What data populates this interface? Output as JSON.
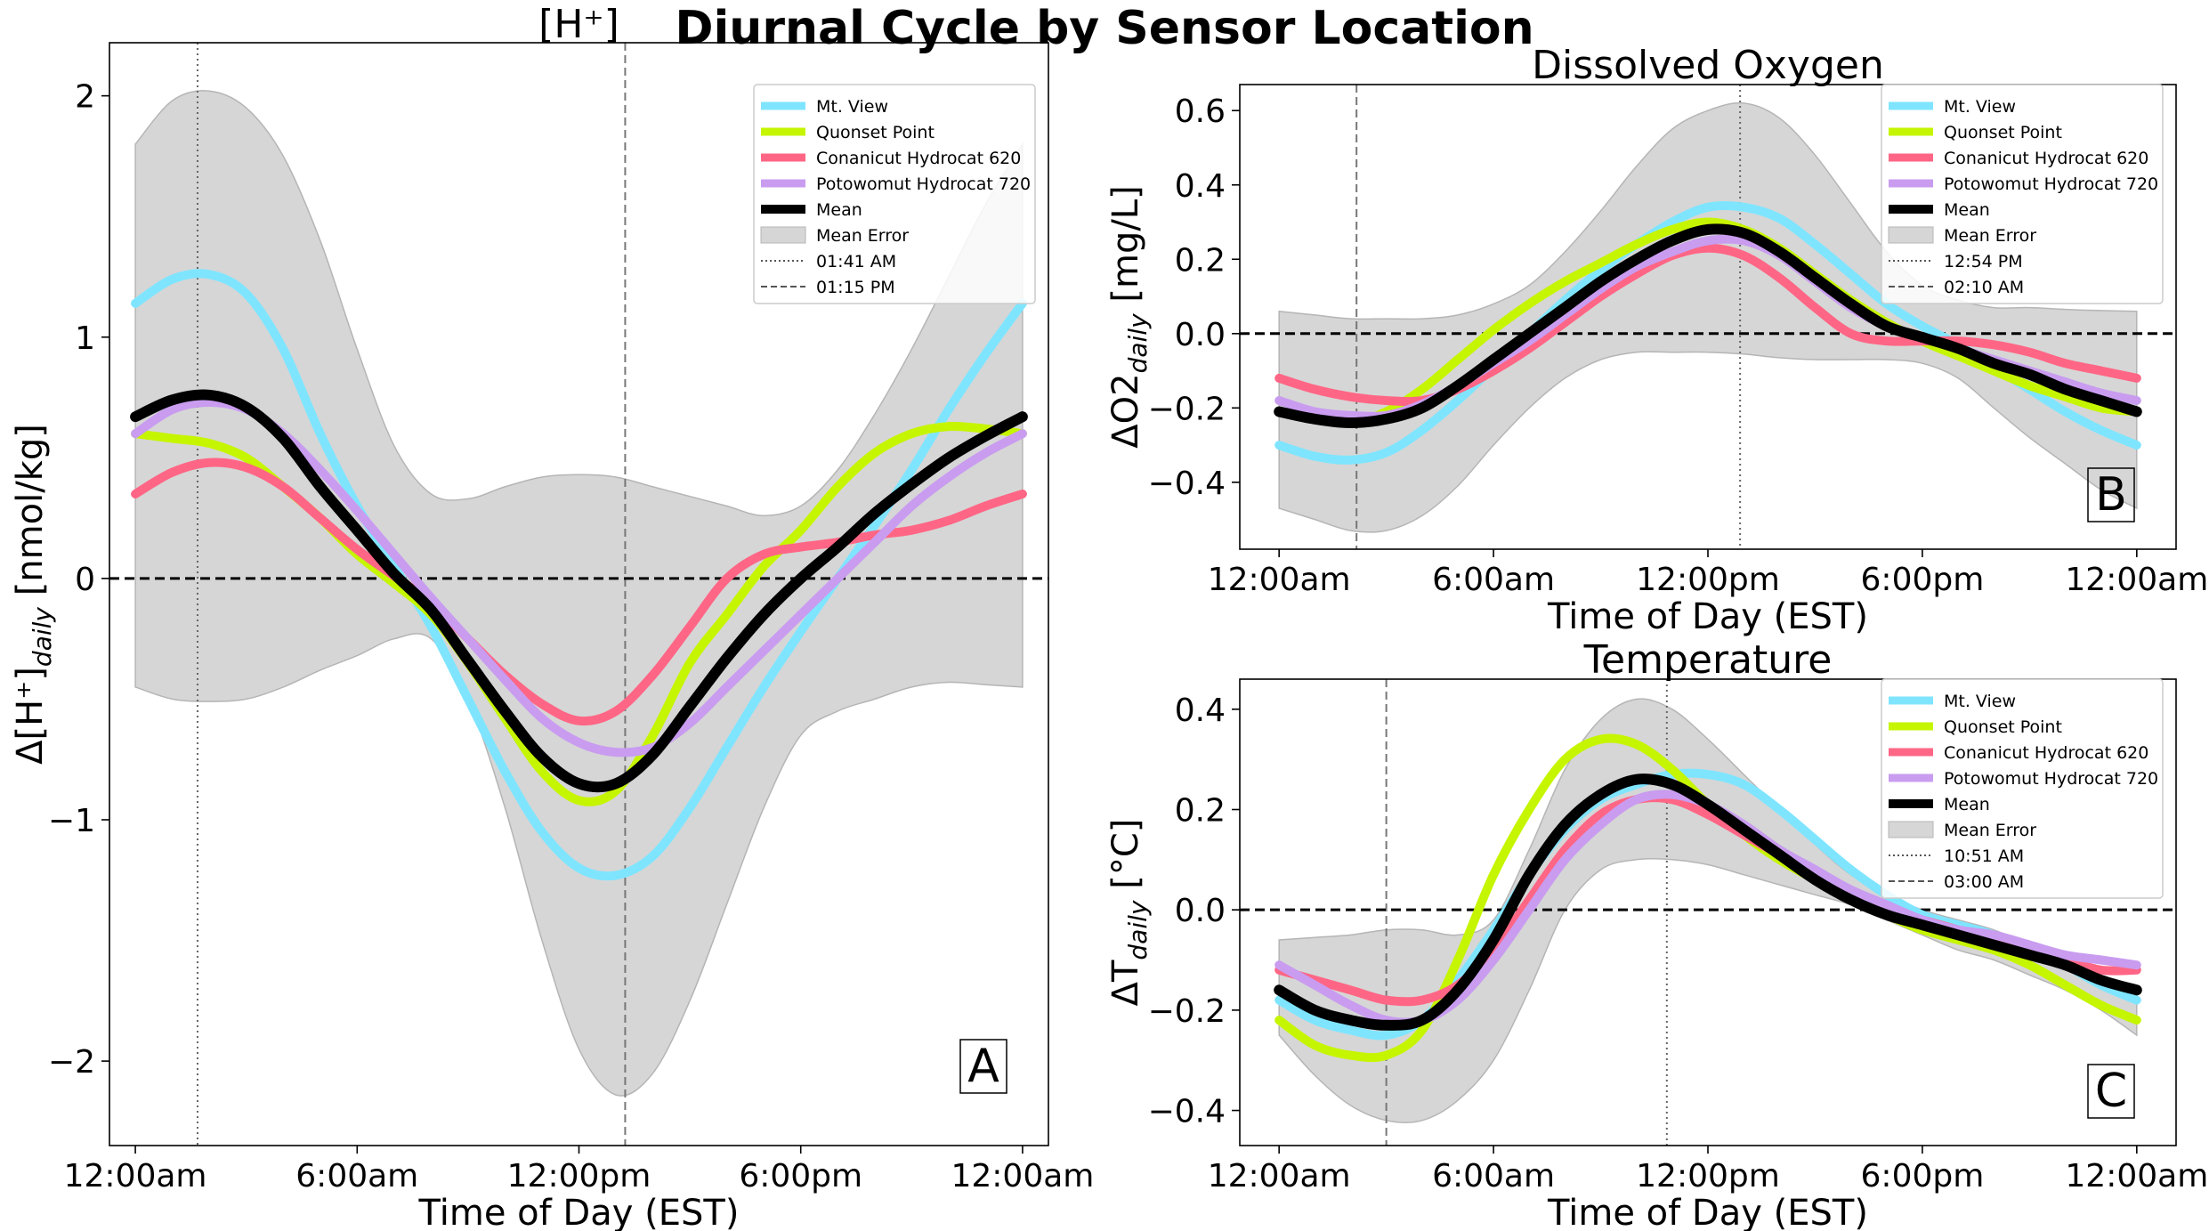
{
  "figure": {
    "title": "Diurnal Cycle by Sensor Location"
  },
  "legend_labels": {
    "series": [
      "Mt. View",
      "Quonset Point",
      "Conanicut Hydrocat 620",
      "Potowomut Hydrocat 720",
      "Mean"
    ],
    "error_band": "Mean Error"
  },
  "colors": {
    "Mt. View": "#7fe5ff",
    "Quonset Point": "#c6f500",
    "Conanicut Hydrocat 620": "#ff6685",
    "Potowomut Hydrocat 720": "#c99cf0",
    "Mean": "#000000",
    "band": "#d6d6d6"
  },
  "chart_data": [
    {
      "type": "line",
      "title": "[H⁺]",
      "xlabel": "Time of Day (EST)",
      "ylabel": "Δ[H⁺]daily [nmol/kg]",
      "ylabel_main": "Δ[H⁺]",
      "ylabel_sub": "daily",
      "ylabel_unit": " [nmol/kg]",
      "xlim": [
        -0.7,
        24.7
      ],
      "ylim": [
        -2.35,
        2.22
      ],
      "yticks": [
        -2,
        -1,
        0,
        1,
        2
      ],
      "ytick_labels": [
        "−2",
        "−1",
        "0",
        "1",
        "2"
      ],
      "xticks": [
        0,
        6,
        12,
        18,
        24
      ],
      "xtick_labels": [
        "12:00am",
        "6:00am",
        "12:00pm",
        "6:00pm",
        "12:00am"
      ],
      "panel_letter": "A",
      "zero_line": true,
      "vlines": [
        {
          "x": 1.683,
          "style": "dotted",
          "label": "01:41 AM"
        },
        {
          "x": 13.25,
          "style": "dashed",
          "label": "01:15 PM"
        }
      ],
      "legend_position": "top-right",
      "band": {
        "x": [
          0,
          1,
          2,
          3,
          4,
          5,
          6,
          7,
          8,
          9,
          10,
          11,
          12,
          13,
          14,
          15,
          16,
          17,
          18,
          19,
          20,
          21,
          22,
          23,
          24
        ],
        "upper": [
          1.8,
          1.98,
          2.02,
          1.95,
          1.75,
          1.4,
          0.95,
          0.55,
          0.35,
          0.33,
          0.38,
          0.42,
          0.43,
          0.42,
          0.38,
          0.34,
          0.3,
          0.26,
          0.3,
          0.45,
          0.68,
          0.95,
          1.25,
          1.55,
          1.8
        ],
        "lower": [
          -0.45,
          -0.5,
          -0.51,
          -0.5,
          -0.45,
          -0.38,
          -0.32,
          -0.25,
          -0.25,
          -0.5,
          -0.95,
          -1.5,
          -1.95,
          -2.14,
          -2.05,
          -1.75,
          -1.35,
          -0.95,
          -0.65,
          -0.55,
          -0.5,
          -0.45,
          -0.43,
          -0.44,
          -0.45
        ]
      },
      "x": [
        0,
        1,
        2,
        3,
        4,
        5,
        6,
        7,
        8,
        9,
        10,
        11,
        12,
        13,
        14,
        15,
        16,
        17,
        18,
        19,
        20,
        21,
        22,
        23,
        24
      ],
      "series": [
        {
          "name": "Mt. View",
          "values": [
            1.14,
            1.24,
            1.26,
            1.18,
            0.95,
            0.6,
            0.3,
            0.05,
            -0.2,
            -0.5,
            -0.8,
            -1.05,
            -1.2,
            -1.23,
            -1.15,
            -0.95,
            -0.7,
            -0.45,
            -0.22,
            0.0,
            0.22,
            0.45,
            0.7,
            0.93,
            1.14
          ]
        },
        {
          "name": "Quonset Point",
          "values": [
            0.6,
            0.58,
            0.56,
            0.5,
            0.38,
            0.25,
            0.1,
            -0.02,
            -0.15,
            -0.35,
            -0.58,
            -0.8,
            -0.92,
            -0.88,
            -0.65,
            -0.35,
            -0.15,
            0.05,
            0.2,
            0.38,
            0.52,
            0.6,
            0.63,
            0.62,
            0.6
          ]
        },
        {
          "name": "Conanicut Hydrocat 620",
          "values": [
            0.35,
            0.44,
            0.48,
            0.46,
            0.38,
            0.25,
            0.12,
            0.01,
            -0.1,
            -0.25,
            -0.4,
            -0.52,
            -0.59,
            -0.55,
            -0.4,
            -0.2,
            0.0,
            0.1,
            0.13,
            0.15,
            0.18,
            0.2,
            0.24,
            0.3,
            0.35
          ]
        },
        {
          "name": "Potowomut Hydrocat 720",
          "values": [
            0.6,
            0.7,
            0.73,
            0.7,
            0.6,
            0.45,
            0.28,
            0.1,
            -0.08,
            -0.25,
            -0.42,
            -0.58,
            -0.68,
            -0.72,
            -0.7,
            -0.6,
            -0.45,
            -0.3,
            -0.15,
            0.0,
            0.15,
            0.3,
            0.42,
            0.52,
            0.6
          ]
        },
        {
          "name": "Mean",
          "values": [
            0.67,
            0.74,
            0.76,
            0.71,
            0.58,
            0.38,
            0.2,
            0.02,
            -0.13,
            -0.34,
            -0.55,
            -0.74,
            -0.85,
            -0.85,
            -0.73,
            -0.53,
            -0.33,
            -0.15,
            0.0,
            0.13,
            0.27,
            0.39,
            0.5,
            0.59,
            0.67
          ]
        }
      ]
    },
    {
      "type": "line",
      "title": "Dissolved Oxygen",
      "xlabel": "Time of Day (EST)",
      "ylabel": "ΔO2daily [mg/L]",
      "ylabel_main": "ΔO2",
      "ylabel_sub": "daily",
      "ylabel_unit": " [mg/L]",
      "xlim": [
        -1.1,
        25.1
      ],
      "ylim": [
        -0.58,
        0.67
      ],
      "yticks": [
        -0.4,
        -0.2,
        0.0,
        0.2,
        0.4,
        0.6
      ],
      "ytick_labels": [
        "−0.4",
        "−0.2",
        "0.0",
        "0.2",
        "0.4",
        "0.6"
      ],
      "xticks": [
        0,
        6,
        12,
        18,
        24
      ],
      "xtick_labels": [
        "12:00am",
        "6:00am",
        "12:00pm",
        "6:00pm",
        "12:00am"
      ],
      "panel_letter": "B",
      "zero_line": true,
      "vlines": [
        {
          "x": 12.9,
          "style": "dotted",
          "label": "12:54 PM"
        },
        {
          "x": 2.167,
          "style": "dashed",
          "label": "02:10 AM"
        }
      ],
      "legend_position": "top-right",
      "band": {
        "x": [
          0,
          1,
          2,
          3,
          4,
          5,
          6,
          7,
          8,
          9,
          10,
          11,
          12,
          13,
          14,
          15,
          16,
          17,
          18,
          19,
          20,
          21,
          22,
          23,
          24
        ],
        "upper": [
          0.06,
          0.05,
          0.04,
          0.04,
          0.04,
          0.05,
          0.08,
          0.13,
          0.22,
          0.33,
          0.45,
          0.55,
          0.6,
          0.62,
          0.58,
          0.48,
          0.35,
          0.22,
          0.13,
          0.09,
          0.07,
          0.07,
          0.065,
          0.062,
          0.06
        ],
        "lower": [
          -0.47,
          -0.5,
          -0.53,
          -0.53,
          -0.49,
          -0.41,
          -0.3,
          -0.2,
          -0.12,
          -0.07,
          -0.05,
          -0.05,
          -0.05,
          -0.055,
          -0.065,
          -0.07,
          -0.07,
          -0.07,
          -0.08,
          -0.12,
          -0.2,
          -0.28,
          -0.35,
          -0.42,
          -0.47
        ]
      },
      "x": [
        0,
        1,
        2,
        3,
        4,
        5,
        6,
        7,
        8,
        9,
        10,
        11,
        12,
        13,
        14,
        15,
        16,
        17,
        18,
        19,
        20,
        21,
        22,
        23,
        24
      ],
      "series": [
        {
          "name": "Mt. View",
          "values": [
            -0.3,
            -0.33,
            -0.34,
            -0.32,
            -0.26,
            -0.18,
            -0.09,
            0.0,
            0.09,
            0.17,
            0.24,
            0.3,
            0.34,
            0.34,
            0.31,
            0.24,
            0.16,
            0.08,
            0.02,
            -0.03,
            -0.09,
            -0.15,
            -0.21,
            -0.26,
            -0.3
          ]
        },
        {
          "name": "Quonset Point",
          "values": [
            -0.21,
            -0.23,
            -0.24,
            -0.21,
            -0.15,
            -0.07,
            0.01,
            0.08,
            0.14,
            0.19,
            0.24,
            0.28,
            0.3,
            0.28,
            0.23,
            0.16,
            0.09,
            0.03,
            -0.02,
            -0.06,
            -0.1,
            -0.14,
            -0.17,
            -0.2,
            -0.21
          ]
        },
        {
          "name": "Conanicut Hydrocat 620",
          "values": [
            -0.12,
            -0.15,
            -0.17,
            -0.18,
            -0.18,
            -0.15,
            -0.1,
            -0.04,
            0.03,
            0.1,
            0.16,
            0.21,
            0.23,
            0.21,
            0.15,
            0.07,
            0.0,
            -0.02,
            -0.02,
            -0.02,
            -0.03,
            -0.05,
            -0.08,
            -0.1,
            -0.12
          ]
        },
        {
          "name": "Potowomut Hydrocat 720",
          "values": [
            -0.18,
            -0.21,
            -0.22,
            -0.22,
            -0.19,
            -0.14,
            -0.08,
            -0.02,
            0.05,
            0.12,
            0.18,
            0.22,
            0.25,
            0.25,
            0.21,
            0.14,
            0.07,
            0.02,
            -0.01,
            -0.04,
            -0.07,
            -0.1,
            -0.13,
            -0.16,
            -0.18
          ]
        },
        {
          "name": "Mean",
          "values": [
            -0.21,
            -0.23,
            -0.24,
            -0.23,
            -0.2,
            -0.14,
            -0.07,
            0.0,
            0.07,
            0.14,
            0.2,
            0.25,
            0.28,
            0.27,
            0.22,
            0.15,
            0.08,
            0.02,
            -0.01,
            -0.04,
            -0.08,
            -0.11,
            -0.15,
            -0.18,
            -0.21
          ]
        }
      ]
    },
    {
      "type": "line",
      "title": "Temperature",
      "xlabel": "Time of Day (EST)",
      "ylabel": "ΔTdaily [°C]",
      "ylabel_main": "ΔT",
      "ylabel_sub": "daily",
      "ylabel_unit": " [°C]",
      "xlim": [
        -1.1,
        25.1
      ],
      "ylim": [
        -0.47,
        0.46
      ],
      "yticks": [
        -0.4,
        -0.2,
        0.0,
        0.2,
        0.4
      ],
      "ytick_labels": [
        "−0.4",
        "−0.2",
        "0.0",
        "0.2",
        "0.4"
      ],
      "xticks": [
        0,
        6,
        12,
        18,
        24
      ],
      "xtick_labels": [
        "12:00am",
        "6:00am",
        "12:00pm",
        "6:00pm",
        "12:00am"
      ],
      "panel_letter": "C",
      "zero_line": true,
      "vlines": [
        {
          "x": 10.85,
          "style": "dotted",
          "label": "10:51 AM"
        },
        {
          "x": 3.0,
          "style": "dashed",
          "label": "03:00 AM"
        }
      ],
      "legend_position": "top-right",
      "band": {
        "x": [
          0,
          1,
          2,
          3,
          4,
          5,
          6,
          7,
          8,
          9,
          10,
          11,
          12,
          13,
          14,
          15,
          16,
          17,
          18,
          19,
          20,
          21,
          22,
          23,
          24
        ],
        "upper": [
          -0.06,
          -0.055,
          -0.05,
          -0.04,
          -0.04,
          -0.05,
          -0.02,
          0.12,
          0.28,
          0.38,
          0.42,
          0.4,
          0.34,
          0.27,
          0.2,
          0.13,
          0.07,
          0.03,
          0.0,
          -0.02,
          -0.04,
          -0.07,
          -0.1,
          -0.14,
          -0.18
        ],
        "lower": [
          -0.25,
          -0.33,
          -0.39,
          -0.42,
          -0.42,
          -0.38,
          -0.3,
          -0.16,
          0.0,
          0.08,
          0.1,
          0.1,
          0.09,
          0.07,
          0.05,
          0.03,
          0.01,
          -0.02,
          -0.05,
          -0.08,
          -0.1,
          -0.13,
          -0.16,
          -0.2,
          -0.25
        ]
      },
      "x": [
        0,
        1,
        2,
        3,
        4,
        5,
        6,
        7,
        8,
        9,
        10,
        11,
        12,
        13,
        14,
        15,
        16,
        17,
        18,
        19,
        20,
        21,
        22,
        23,
        24
      ],
      "series": [
        {
          "name": "Mt. View",
          "values": [
            -0.18,
            -0.22,
            -0.24,
            -0.25,
            -0.22,
            -0.14,
            -0.04,
            0.07,
            0.16,
            0.22,
            0.25,
            0.27,
            0.27,
            0.25,
            0.2,
            0.14,
            0.08,
            0.03,
            -0.01,
            -0.03,
            -0.05,
            -0.08,
            -0.11,
            -0.15,
            -0.18
          ]
        },
        {
          "name": "Quonset Point",
          "values": [
            -0.22,
            -0.27,
            -0.29,
            -0.29,
            -0.24,
            -0.1,
            0.07,
            0.2,
            0.3,
            0.34,
            0.33,
            0.28,
            0.21,
            0.15,
            0.1,
            0.06,
            0.02,
            -0.01,
            -0.04,
            -0.06,
            -0.08,
            -0.11,
            -0.15,
            -0.19,
            -0.22
          ]
        },
        {
          "name": "Conanicut Hydrocat 620",
          "values": [
            -0.12,
            -0.14,
            -0.16,
            -0.18,
            -0.18,
            -0.15,
            -0.08,
            0.02,
            0.12,
            0.19,
            0.22,
            0.22,
            0.19,
            0.15,
            0.11,
            0.07,
            0.03,
            0.0,
            -0.02,
            -0.04,
            -0.06,
            -0.08,
            -0.1,
            -0.12,
            -0.12
          ]
        },
        {
          "name": "Potowomut Hydrocat 720",
          "values": [
            -0.11,
            -0.15,
            -0.19,
            -0.22,
            -0.22,
            -0.18,
            -0.1,
            0.0,
            0.1,
            0.17,
            0.22,
            0.23,
            0.21,
            0.17,
            0.12,
            0.08,
            0.04,
            0.01,
            -0.02,
            -0.04,
            -0.05,
            -0.07,
            -0.09,
            -0.1,
            -0.11
          ]
        },
        {
          "name": "Mean",
          "values": [
            -0.16,
            -0.2,
            -0.22,
            -0.23,
            -0.22,
            -0.16,
            -0.06,
            0.07,
            0.17,
            0.23,
            0.26,
            0.25,
            0.21,
            0.16,
            0.11,
            0.06,
            0.02,
            -0.01,
            -0.03,
            -0.05,
            -0.07,
            -0.09,
            -0.11,
            -0.14,
            -0.16
          ]
        }
      ]
    }
  ]
}
